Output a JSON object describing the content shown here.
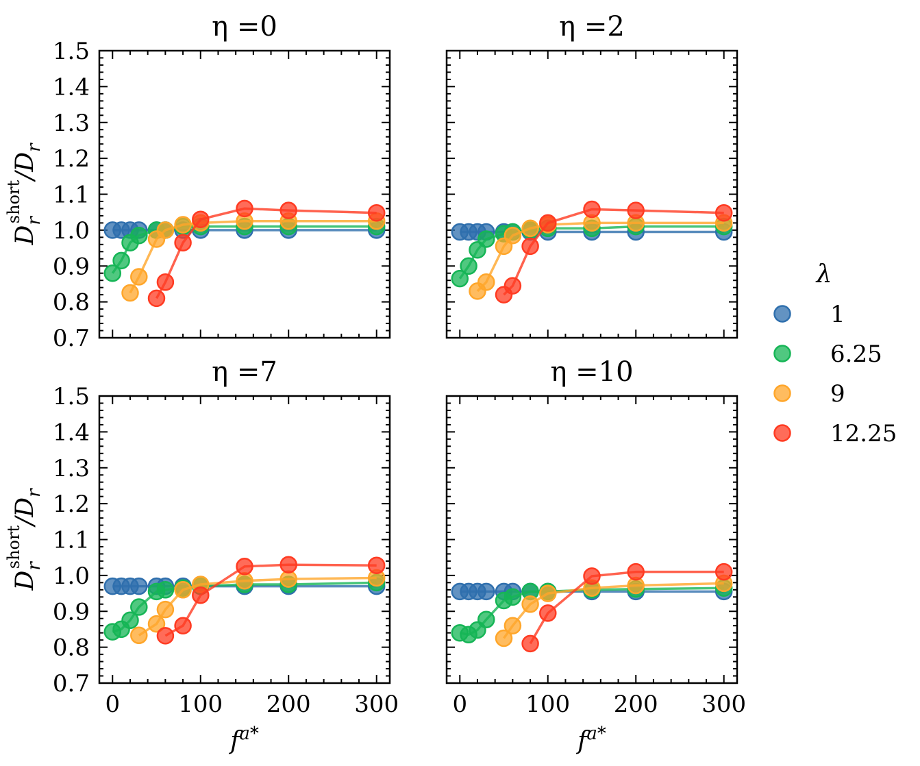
{
  "chart_data": {
    "type": "scatter",
    "layout": "2x2 grid, shared axes",
    "x_ticks": [
      0,
      100,
      200,
      300
    ],
    "y_ticks": [
      "0.7",
      "0.8",
      "0.9",
      "1.0",
      "1.1",
      "1.2",
      "1.3",
      "1.4",
      "1.5"
    ],
    "xlim": [
      -15,
      315
    ],
    "ylim": [
      0.7,
      1.5
    ],
    "xlabel": "f^{a*}",
    "ylabel": "D_r^{short}/D_r",
    "legend": {
      "title": "λ",
      "placement": "right, outside",
      "entries": [
        {
          "label": "1",
          "color": "#2f6fad"
        },
        {
          "label": "6.25",
          "color": "#16b556"
        },
        {
          "label": "9",
          "color": "#ffa62a"
        },
        {
          "label": "12.25",
          "color": "#ff3b22"
        }
      ]
    },
    "panels": [
      {
        "title": "η =0",
        "series": [
          {
            "name": "1",
            "x": [
              0,
              10,
              20,
              30,
              50,
              60,
              80,
              100,
              150,
              200,
              300
            ],
            "y": [
              1.0,
              1.0,
              1.0,
              1.0,
              1.0,
              1.0,
              1.0,
              1.0,
              1.0,
              1.0,
              1.0
            ]
          },
          {
            "name": "6.25",
            "x": [
              0,
              10,
              20,
              30,
              50,
              60,
              80,
              100,
              150,
              200,
              300
            ],
            "y": [
              0.88,
              0.915,
              0.965,
              0.985,
              1.0,
              1.0,
              1.01,
              1.01,
              1.01,
              1.01,
              1.01
            ]
          },
          {
            "name": "9",
            "x": [
              20,
              30,
              50,
              60,
              80,
              100,
              150,
              200,
              300
            ],
            "y": [
              0.825,
              0.87,
              0.975,
              1.0,
              1.015,
              1.02,
              1.025,
              1.025,
              1.025
            ]
          },
          {
            "name": "12.25",
            "x": [
              50,
              60,
              80,
              100,
              150,
              200,
              300
            ],
            "y": [
              0.81,
              0.855,
              0.965,
              1.03,
              1.06,
              1.055,
              1.048
            ]
          }
        ]
      },
      {
        "title": "η =2",
        "series": [
          {
            "name": "1",
            "x": [
              0,
              10,
              20,
              30,
              50,
              60,
              80,
              100,
              150,
              200,
              300
            ],
            "y": [
              0.995,
              0.995,
              0.995,
              0.995,
              0.995,
              0.995,
              0.995,
              0.995,
              0.995,
              0.995,
              0.995
            ]
          },
          {
            "name": "6.25",
            "x": [
              0,
              10,
              20,
              30,
              50,
              60,
              80,
              100,
              150,
              200,
              300
            ],
            "y": [
              0.865,
              0.9,
              0.945,
              0.975,
              0.99,
              0.995,
              1.0,
              1.005,
              1.005,
              1.01,
              1.01
            ]
          },
          {
            "name": "9",
            "x": [
              20,
              30,
              50,
              60,
              80,
              100,
              150,
              200,
              300
            ],
            "y": [
              0.83,
              0.855,
              0.955,
              0.985,
              1.005,
              1.015,
              1.02,
              1.02,
              1.02
            ]
          },
          {
            "name": "12.25",
            "x": [
              50,
              60,
              80,
              100,
              150,
              200,
              300
            ],
            "y": [
              0.82,
              0.845,
              0.955,
              1.02,
              1.058,
              1.055,
              1.048
            ]
          }
        ]
      },
      {
        "title": "η =7",
        "series": [
          {
            "name": "1",
            "x": [
              0,
              10,
              20,
              30,
              50,
              60,
              80,
              100,
              150,
              200,
              300
            ],
            "y": [
              0.97,
              0.97,
              0.97,
              0.97,
              0.97,
              0.97,
              0.97,
              0.97,
              0.97,
              0.97,
              0.97
            ]
          },
          {
            "name": "6.25",
            "x": [
              0,
              10,
              20,
              30,
              50,
              60,
              80,
              100,
              150,
              200,
              300
            ],
            "y": [
              0.843,
              0.85,
              0.875,
              0.912,
              0.955,
              0.96,
              0.965,
              0.97,
              0.975,
              0.975,
              0.98
            ]
          },
          {
            "name": "9",
            "x": [
              30,
              50,
              60,
              80,
              100,
              150,
              200,
              300
            ],
            "y": [
              0.833,
              0.865,
              0.905,
              0.96,
              0.975,
              0.985,
              0.99,
              0.993
            ]
          },
          {
            "name": "12.25",
            "x": [
              60,
              80,
              100,
              150,
              200,
              300
            ],
            "y": [
              0.832,
              0.86,
              0.945,
              1.025,
              1.03,
              1.028
            ]
          }
        ]
      },
      {
        "title": "η =10",
        "series": [
          {
            "name": "1",
            "x": [
              0,
              10,
              20,
              30,
              50,
              60,
              80,
              100,
              150,
              200,
              300
            ],
            "y": [
              0.955,
              0.955,
              0.955,
              0.955,
              0.955,
              0.955,
              0.955,
              0.955,
              0.955,
              0.955,
              0.955
            ]
          },
          {
            "name": "6.25",
            "x": [
              0,
              10,
              20,
              30,
              50,
              60,
              80,
              100,
              150,
              200,
              300
            ],
            "y": [
              0.84,
              0.835,
              0.848,
              0.877,
              0.93,
              0.94,
              0.955,
              0.955,
              0.96,
              0.962,
              0.965
            ]
          },
          {
            "name": "9",
            "x": [
              50,
              60,
              80,
              100,
              150,
              200,
              300
            ],
            "y": [
              0.825,
              0.86,
              0.92,
              0.95,
              0.965,
              0.972,
              0.978
            ]
          },
          {
            "name": "12.25",
            "x": [
              80,
              100,
              150,
              200,
              300
            ],
            "y": [
              0.81,
              0.895,
              0.998,
              1.01,
              1.01
            ]
          }
        ]
      }
    ]
  }
}
